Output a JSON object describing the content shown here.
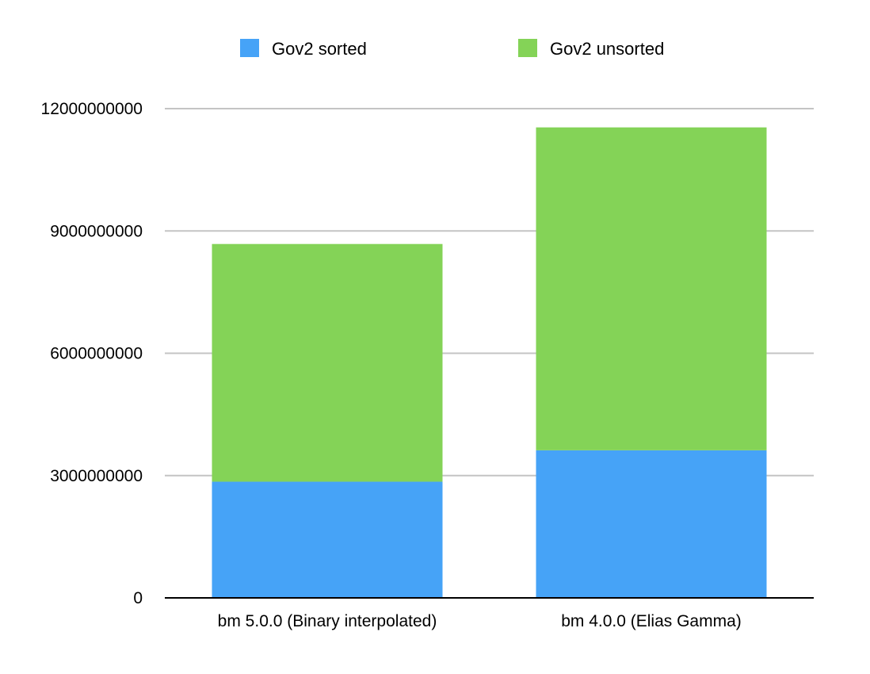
{
  "chart_data": {
    "type": "bar",
    "stacked": true,
    "categories": [
      "bm 5.0.0 (Binary interpolated)",
      "bm 4.0.0 (Elias Gamma)"
    ],
    "series": [
      {
        "name": "Gov2 sorted",
        "values": [
          2850000000,
          3620000000
        ],
        "color": "#46a3f7"
      },
      {
        "name": "Gov2 unsorted",
        "values": [
          5830000000,
          7920000000
        ],
        "color": "#84d357"
      }
    ],
    "ylim": [
      0,
      12000000000
    ],
    "yticks": [
      "0",
      "3000000000",
      "6000000000",
      "9000000000",
      "12000000000"
    ],
    "ytick_values": [
      0,
      3000000000,
      6000000000,
      9000000000,
      12000000000
    ],
    "grid": true,
    "legend_position": "top",
    "title": "",
    "xlabel": "",
    "ylabel": ""
  }
}
